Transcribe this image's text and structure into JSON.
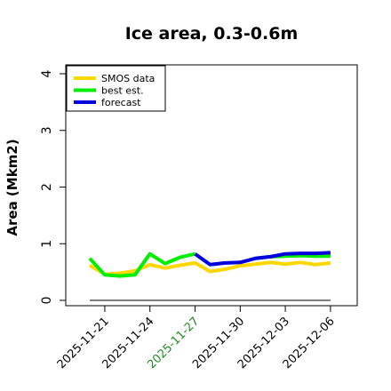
{
  "chart_data": {
    "type": "line",
    "title": "Ice area, 0.3-0.6m",
    "xlabel": "",
    "ylabel": "Area (Mkm2)",
    "ylim": [
      0,
      4
    ],
    "yticks": [
      "0",
      "1",
      "2",
      "3",
      "4"
    ],
    "xticks": [
      "2025-11-21",
      "2025-11-24",
      "2025-11-27",
      "2025-11-30",
      "2025-12-03",
      "2025-12-06"
    ],
    "highlight_tick": "2025-11-27",
    "highlight_color": "#228b22",
    "baseline": 0,
    "grid": false,
    "legend_position": "top-left",
    "x": [
      "2025-11-20",
      "2025-11-21",
      "2025-11-22",
      "2025-11-23",
      "2025-11-24",
      "2025-11-25",
      "2025-11-26",
      "2025-11-27",
      "2025-11-28",
      "2025-11-29",
      "2025-11-30",
      "2025-12-01",
      "2025-12-02",
      "2025-12-03",
      "2025-12-04",
      "2025-12-05",
      "2025-12-06"
    ],
    "series": [
      {
        "name": "SMOS data",
        "color": "#ffd700",
        "values": [
          0.62,
          0.46,
          0.48,
          0.52,
          0.63,
          0.57,
          0.62,
          0.66,
          0.51,
          0.55,
          0.61,
          0.64,
          0.67,
          0.64,
          0.67,
          0.63,
          0.66
        ]
      },
      {
        "name": "best est.",
        "color": "#00ee00",
        "values": [
          0.74,
          0.45,
          0.43,
          0.45,
          0.82,
          0.65,
          0.76,
          0.82,
          null,
          null,
          null,
          null,
          null,
          null,
          null,
          null,
          null
        ]
      },
      {
        "name": "forecast",
        "color": "#0000dd",
        "values": [
          null,
          null,
          null,
          null,
          null,
          null,
          null,
          0.82,
          0.63,
          0.66,
          0.67,
          0.74,
          0.77,
          0.82,
          0.83,
          0.83,
          0.84
        ]
      }
    ],
    "continuation": {
      "name": "best est.",
      "color": "#00ee00",
      "start_index": 11,
      "values": [
        0.74,
        0.77,
        0.78,
        0.79,
        0.78,
        0.78
      ]
    }
  }
}
